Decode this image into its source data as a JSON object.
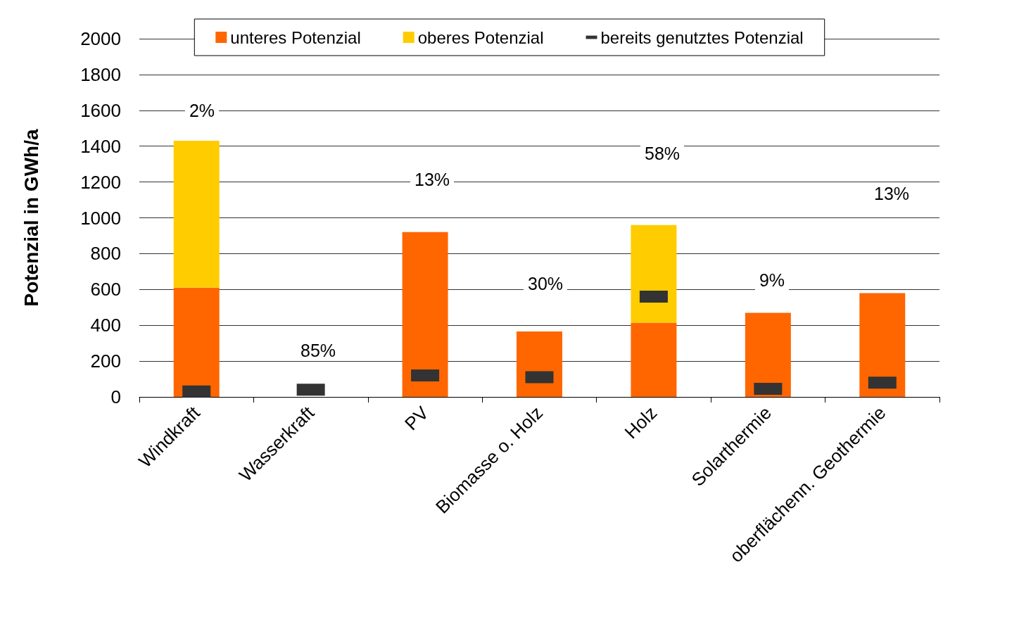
{
  "chart_data": {
    "type": "bar",
    "stacked": true,
    "ylabel": "Potenzial in GWh/a",
    "categories": [
      "Windkraft",
      "Wasserkraft",
      "PV",
      "Biomasse o. Holz",
      "Holz",
      "Solarthermie",
      "oberflächenn. Geothermie"
    ],
    "series": [
      {
        "name": "unteres Potenzial",
        "color": "#ff6600",
        "values": [
          610,
          null,
          920,
          365,
          415,
          470,
          580
        ]
      },
      {
        "name": "oberes Potenzial",
        "color": "#ffcc00",
        "values": [
          820,
          null,
          null,
          null,
          545,
          null,
          null
        ]
      },
      {
        "name": "bereits genutztes Potenzial",
        "type": "scatter",
        "marker": "square",
        "color": "#333333",
        "values": [
          30,
          40,
          120,
          110,
          560,
          45,
          80
        ]
      }
    ],
    "ylim": [
      0,
      2000
    ],
    "yticks": [
      0,
      200,
      400,
      600,
      800,
      1000,
      1200,
      1400,
      1600,
      1800,
      2000
    ],
    "grid": "y",
    "legend": "top",
    "annotations": [
      "2%",
      "85%",
      "13%",
      "30%",
      "58%",
      "9%",
      "13%"
    ]
  }
}
